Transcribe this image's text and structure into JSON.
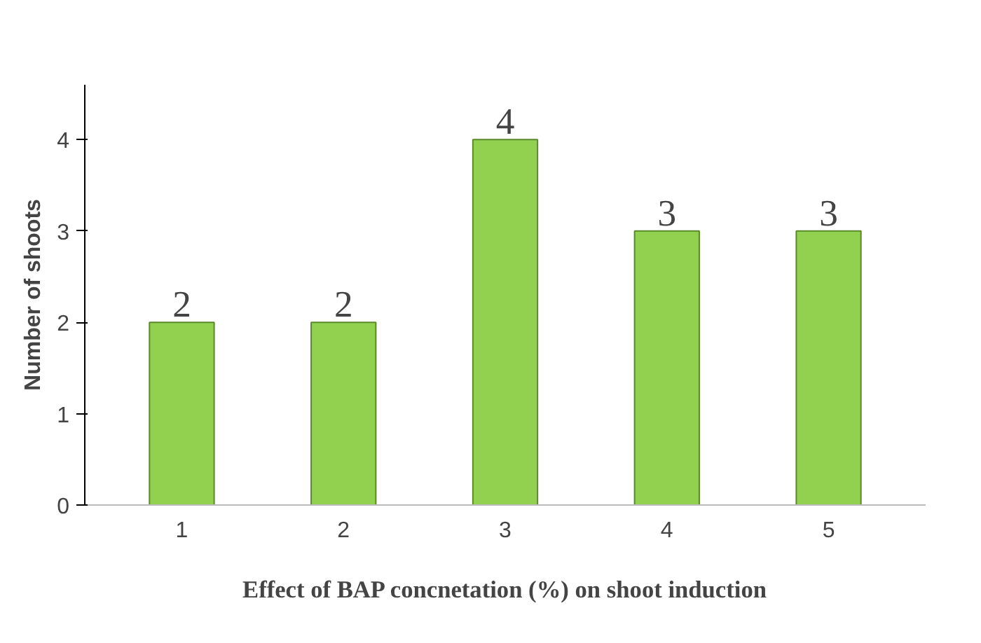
{
  "chart_data": {
    "type": "bar",
    "xlabel": "Effect of BAP concnetation (%) on shoot induction",
    "ylabel": "Number of shoots",
    "categories": [
      "1",
      "2",
      "3",
      "4",
      "5"
    ],
    "values": [
      2,
      2,
      4,
      3,
      3
    ],
    "color": "#92d050",
    "ylim": [
      0,
      4.6
    ],
    "yticks": [
      0,
      1,
      2,
      3,
      4
    ],
    "data_labels": true,
    "grid": false
  }
}
